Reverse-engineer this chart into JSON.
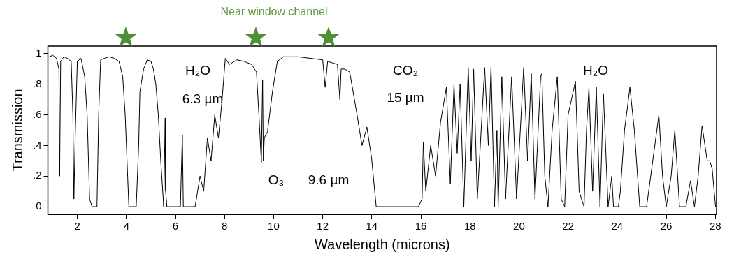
{
  "chart_data": {
    "type": "line",
    "xlabel": "Wavelength (microns)",
    "ylabel": "Transmission",
    "xlim": [
      0.8,
      28.05
    ],
    "ylim": [
      -0.05,
      1.05
    ],
    "xticks": [
      2,
      4,
      6,
      8,
      10,
      12,
      14,
      16,
      18,
      20,
      22,
      24,
      26,
      28
    ],
    "yticks": [
      {
        "value": 0,
        "label": "0"
      },
      {
        "value": 0.2,
        "label": ".2"
      },
      {
        "value": 0.4,
        "label": ".4"
      },
      {
        "value": 0.6,
        "label": ".6"
      },
      {
        "value": 0.8,
        "label": ".8"
      },
      {
        "value": 1,
        "label": "1"
      }
    ],
    "grid": false,
    "legend": false,
    "marker": "none",
    "line_style": "solid",
    "series": [
      {
        "color": "#000000",
        "x": [
          0.85,
          1.0,
          1.15,
          1.25,
          1.28,
          1.32,
          1.45,
          1.6,
          1.75,
          1.82,
          1.86,
          1.92,
          2.0,
          2.15,
          2.3,
          2.4,
          2.5,
          2.6,
          2.8,
          2.87,
          2.95,
          3.1,
          3.3,
          3.5,
          3.7,
          3.85,
          3.95,
          4.05,
          4.1,
          4.4,
          4.5,
          4.55,
          4.7,
          4.85,
          5.0,
          5.1,
          5.2,
          5.3,
          5.4,
          5.52,
          5.58,
          5.6,
          5.65,
          6.0,
          6.2,
          6.28,
          6.32,
          6.4,
          6.8,
          7.0,
          7.15,
          7.3,
          7.45,
          7.6,
          7.75,
          7.9,
          8.03,
          8.2,
          8.5,
          8.8,
          9.1,
          9.3,
          9.4,
          9.5,
          9.55,
          9.58,
          9.62,
          9.75,
          9.95,
          10.15,
          10.4,
          11.0,
          11.5,
          12.0,
          12.1,
          12.2,
          12.6,
          12.7,
          12.75,
          12.9,
          13.1,
          13.4,
          13.6,
          13.8,
          13.99,
          14.18,
          15.0,
          15.9,
          16.05,
          16.1,
          16.2,
          16.4,
          16.6,
          16.8,
          17.04,
          17.2,
          17.35,
          17.48,
          17.6,
          17.75,
          17.93,
          18.05,
          18.15,
          18.3,
          18.6,
          18.75,
          18.86,
          19.0,
          19.1,
          19.15,
          19.3,
          19.45,
          19.7,
          19.9,
          20.19,
          20.35,
          20.5,
          20.65,
          20.88,
          20.93,
          21.05,
          21.18,
          21.35,
          21.56,
          21.72,
          21.86,
          22.0,
          22.3,
          22.45,
          22.65,
          22.75,
          22.85,
          23.0,
          23.15,
          23.3,
          23.44,
          23.63,
          23.78,
          23.85,
          24.05,
          24.13,
          24.3,
          24.52,
          24.7,
          24.92,
          25.2,
          25.45,
          25.7,
          25.85,
          26.0,
          26.2,
          26.35,
          26.54,
          26.8,
          26.99,
          27.15,
          27.3,
          27.46,
          27.67,
          27.77,
          27.87,
          28.01
        ],
        "values": [
          0.98,
          0.99,
          0.97,
          0.9,
          0.2,
          0.95,
          0.98,
          0.97,
          0.95,
          0.6,
          0.05,
          0.5,
          0.95,
          0.97,
          0.85,
          0.6,
          0.05,
          0,
          0,
          0.6,
          0.96,
          0.97,
          0.98,
          0.97,
          0.95,
          0.85,
          0.6,
          0.2,
          0,
          0,
          0.4,
          0.75,
          0.9,
          0.96,
          0.95,
          0.9,
          0.8,
          0.6,
          0.3,
          0,
          0.58,
          0.1,
          0,
          0,
          0,
          0.47,
          0,
          0,
          0,
          0.2,
          0.1,
          0.45,
          0.3,
          0.6,
          0.45,
          0.7,
          0.97,
          0.93,
          0.96,
          0.95,
          0.93,
          0.88,
          0.6,
          0.29,
          0.83,
          0.3,
          0.45,
          0.49,
          0.75,
          0.95,
          0.98,
          0.98,
          0.97,
          0.96,
          0.78,
          0.95,
          0.93,
          0.7,
          0.9,
          0.9,
          0.88,
          0.6,
          0.4,
          0.52,
          0.32,
          0,
          0,
          0,
          0.05,
          0.42,
          0.1,
          0.4,
          0.2,
          0.55,
          0.78,
          0.15,
          0.8,
          0.35,
          0.8,
          0.0,
          0.91,
          0.3,
          0.9,
          0.05,
          0.91,
          0.4,
          0.92,
          0.0,
          0.5,
          0.0,
          0.85,
          0.05,
          0.85,
          0.05,
          0.91,
          0.3,
          0.87,
          0.05,
          0.85,
          0.87,
          0.2,
          0.0,
          0.5,
          0.85,
          0.05,
          0.0,
          0.6,
          0.82,
          0.1,
          0.0,
          0.5,
          0.78,
          0.1,
          0.78,
          0.0,
          0.74,
          0.0,
          0.2,
          0,
          0,
          0.1,
          0.5,
          0.78,
          0.5,
          0,
          0,
          0.3,
          0.6,
          0.2,
          0,
          0.2,
          0.5,
          0,
          0,
          0.17,
          0,
          0.2,
          0.53,
          0.3,
          0.3,
          0.25,
          0
        ]
      }
    ],
    "annotations": [
      "H₂O",
      "6.3 µm",
      "O₃",
      "9.6 µm",
      "CO₂",
      "15 µm",
      "H₂O",
      "Near window channel"
    ]
  }
}
